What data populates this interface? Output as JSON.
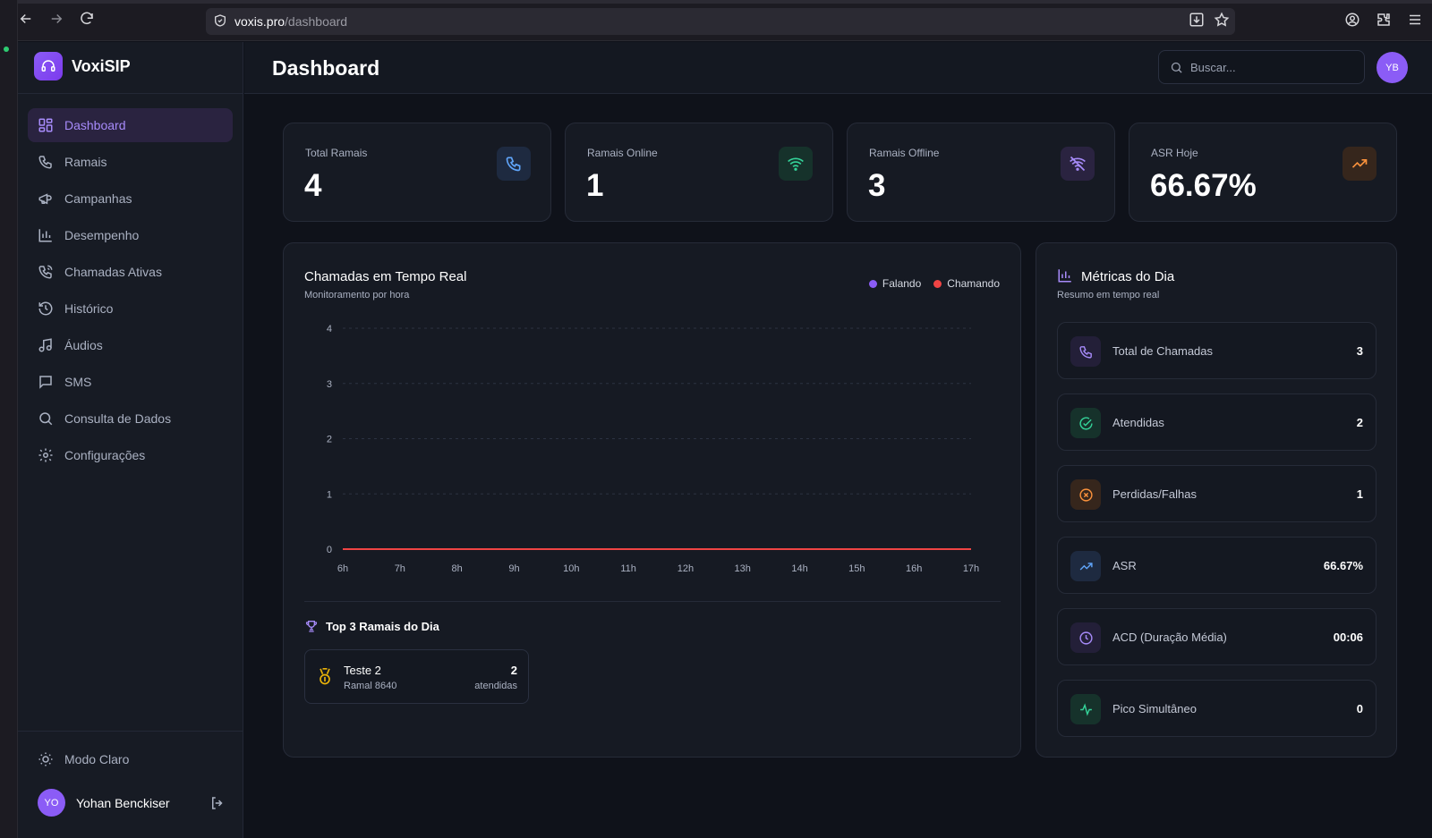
{
  "browser": {
    "url_host": "voxis.pro",
    "url_path": "/dashboard"
  },
  "brand": {
    "name": "VoxiSIP"
  },
  "sidebar": {
    "items": [
      {
        "label": "Dashboard",
        "icon": "grid-icon",
        "active": true
      },
      {
        "label": "Ramais",
        "icon": "phone-icon"
      },
      {
        "label": "Campanhas",
        "icon": "megaphone-icon"
      },
      {
        "label": "Desempenho",
        "icon": "bar-chart-icon"
      },
      {
        "label": "Chamadas Ativas",
        "icon": "phone-call-icon"
      },
      {
        "label": "Histórico",
        "icon": "history-icon"
      },
      {
        "label": "Áudios",
        "icon": "music-icon"
      },
      {
        "label": "SMS",
        "icon": "message-icon"
      },
      {
        "label": "Consulta de Dados",
        "icon": "search-icon"
      },
      {
        "label": "Configurações",
        "icon": "gear-icon"
      }
    ],
    "mode_label": "Modo Claro",
    "user": {
      "initials": "YO",
      "name": "Yohan Benckiser"
    }
  },
  "header": {
    "title": "Dashboard",
    "search_placeholder": "Buscar...",
    "avatar_initials": "YB"
  },
  "stats": [
    {
      "label": "Total Ramais",
      "value": "4",
      "icon": "phone-icon",
      "color": "#60a5fa",
      "bg": "#1e2a40"
    },
    {
      "label": "Ramais Online",
      "value": "1",
      "icon": "wifi-icon",
      "color": "#34d399",
      "bg": "#16322b"
    },
    {
      "label": "Ramais Offline",
      "value": "3",
      "icon": "wifi-off-icon",
      "color": "#a78bfa",
      "bg": "#2a2340"
    },
    {
      "label": "ASR Hoje",
      "value": "66.67%",
      "icon": "trending-up-icon",
      "color": "#fb923c",
      "bg": "#36261c"
    }
  ],
  "chart_panel": {
    "title": "Chamadas em Tempo Real",
    "subtitle": "Monitoramento por hora",
    "legend": [
      {
        "label": "Falando",
        "color": "#8b5cf6"
      },
      {
        "label": "Chamando",
        "color": "#ef4444"
      }
    ],
    "top3_title": "Top 3 Ramais do Dia",
    "top3": [
      {
        "name": "Teste 2",
        "sub": "Ramal 8640",
        "count": "2",
        "unit": "atendidas"
      }
    ]
  },
  "chart_data": {
    "type": "line",
    "title": "Chamadas em Tempo Real",
    "subtitle": "Monitoramento por hora",
    "x": [
      "6h",
      "7h",
      "8h",
      "9h",
      "10h",
      "11h",
      "12h",
      "13h",
      "14h",
      "15h",
      "16h",
      "17h"
    ],
    "ylim": [
      0,
      4
    ],
    "yticks": [
      0,
      1,
      2,
      3,
      4
    ],
    "grid": true,
    "legend_position": "top-right",
    "series": [
      {
        "name": "Falando",
        "color": "#8b5cf6",
        "values": [
          0,
          0,
          0,
          0,
          0,
          0,
          0,
          0,
          0,
          0,
          0,
          0
        ]
      },
      {
        "name": "Chamando",
        "color": "#ef4444",
        "values": [
          0,
          0,
          0,
          0,
          0,
          0,
          0,
          0,
          0,
          0,
          0,
          0
        ]
      }
    ]
  },
  "metrics_panel": {
    "title": "Métricas do Dia",
    "subtitle": "Resumo em tempo real",
    "rows": [
      {
        "label": "Total de Chamadas",
        "value": "3",
        "icon": "phone-icon",
        "color": "#a78bfa",
        "bg": "#231f38"
      },
      {
        "label": "Atendidas",
        "value": "2",
        "icon": "check-circle-icon",
        "color": "#34d399",
        "bg": "#16322b"
      },
      {
        "label": "Perdidas/Falhas",
        "value": "1",
        "icon": "x-circle-icon",
        "color": "#fb923c",
        "bg": "#36261c"
      },
      {
        "label": "ASR",
        "value": "66.67%",
        "icon": "trending-up-icon",
        "color": "#60a5fa",
        "bg": "#1e2a40"
      },
      {
        "label": "ACD (Duração Média)",
        "value": "00:06",
        "icon": "clock-icon",
        "color": "#a78bfa",
        "bg": "#231f38"
      },
      {
        "label": "Pico Simultâneo",
        "value": "0",
        "icon": "activity-icon",
        "color": "#34d399",
        "bg": "#16322b"
      }
    ]
  }
}
